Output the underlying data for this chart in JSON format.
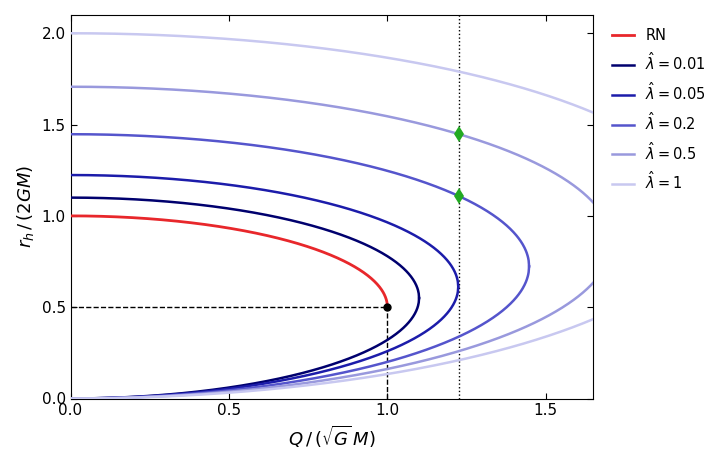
{
  "xlabel_math": "Q / (\\sqrt{G}\\,M)",
  "ylabel_math": "r_h / (2GM)",
  "xlim": [
    0.0,
    1.65
  ],
  "ylim": [
    0.0,
    2.1
  ],
  "xticks": [
    0.0,
    0.5,
    1.0,
    1.5
  ],
  "yticks": [
    0.0,
    0.5,
    1.0,
    1.5,
    2.0
  ],
  "rn_color": "#e8272b",
  "lambda_colors": [
    "#00006e",
    "#1c1caa",
    "#5555cc",
    "#9999dd",
    "#c8c8f0"
  ],
  "lambda_values": [
    0.01,
    0.05,
    0.2,
    0.5,
    1.0
  ],
  "lambda_labels": [
    "0.01",
    "0.05",
    "0.2",
    "0.5",
    "1"
  ],
  "dotted_line_x": 1.225,
  "extremal_point": [
    1.0,
    0.5
  ],
  "green_diamond_color": "#22aa22",
  "green_diamond_lambda_indices": [
    2,
    3
  ],
  "background_color": "#ffffff",
  "legend_rn_label": "RN"
}
